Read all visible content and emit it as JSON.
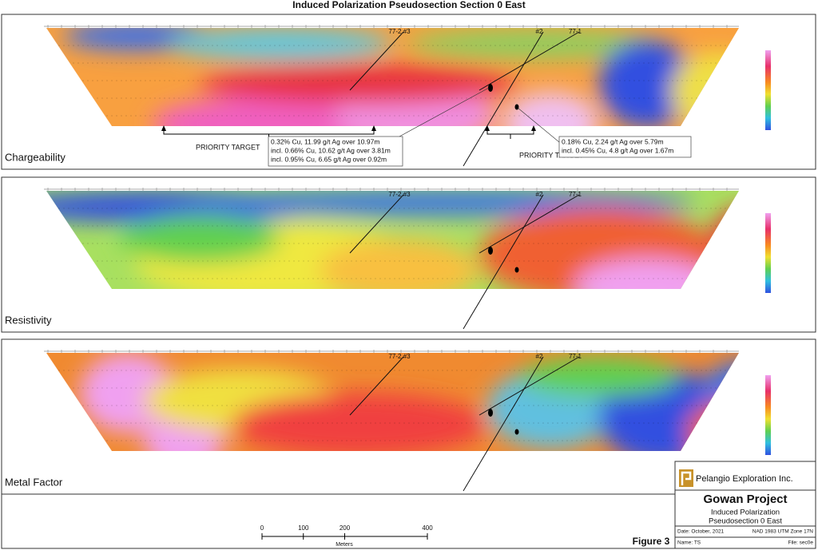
{
  "title": "Induced Polarization Pseudosection Section 0 East",
  "panels": [
    {
      "label": "Chargeability",
      "holes": [
        "77-2 #3",
        "#2",
        "77-1"
      ],
      "targets": [
        "PRIORITY TARGET",
        "PRIORITY TARGET"
      ],
      "intercepts": [
        [
          "0.32% Cu, 11.99 g/t Ag over 10.97m",
          "incl. 0.66% Cu, 10.62 g/t  Ag over 3.81m",
          "incl. 0.95% Cu, 6.65 g/t  Ag over 0.92m"
        ],
        [
          "0.18% Cu, 2.24 g/t Ag over 5.79m",
          "incl. 0.45% Cu, 4.8 g/t  Ag over 1.67m"
        ]
      ]
    },
    {
      "label": "Resistivity",
      "holes": [
        "77-2 #3",
        "#2",
        "77-1"
      ]
    },
    {
      "label": "Metal Factor",
      "holes": [
        "77-2 #3",
        "#2",
        "77-1"
      ]
    }
  ],
  "scale_bar": {
    "ticks": [
      0,
      100,
      200,
      400
    ],
    "unit": "Meters"
  },
  "title_block": {
    "company": "Pelangio Exploration Inc.",
    "project": "Gowan Project",
    "subtitle": [
      "Induced Polarization",
      "Pseudosection 0 East"
    ],
    "date": "Date: October, 2021",
    "datum": "NAD 1983 UTM Zone 17N",
    "name": "Name: TS",
    "file": "File: sec0e"
  },
  "figure_label": "Figure 3"
}
